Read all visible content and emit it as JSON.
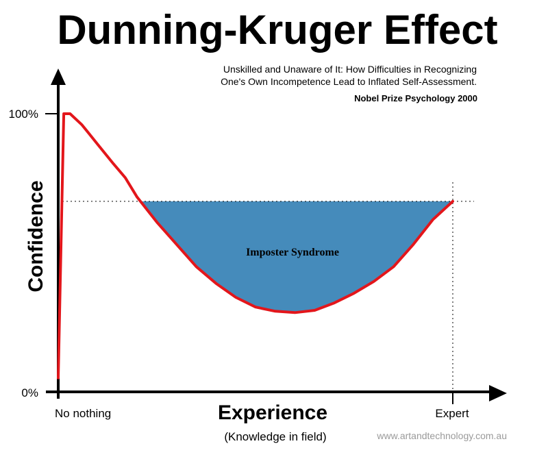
{
  "chart_data": {
    "type": "line",
    "title": "Dunning-Kruger Effect",
    "subtitle_lines": [
      "Unskilled and Unaware of It: How Difficulties in Recognizing",
      "One's Own Incompetence Lead to Inflated Self-Assessment."
    ],
    "note": "Nobel Prize Psychology  2000",
    "xlabel": "Experience",
    "xlabel_sub": "(Knowledge in field)",
    "ylabel": "Confidence",
    "x_tick_labels": [
      "No nothing",
      "Expert"
    ],
    "y_tick_labels": [
      "0%",
      "100%"
    ],
    "xlim": [
      0,
      100
    ],
    "ylim": [
      0,
      100
    ],
    "series": [
      {
        "color": "#e3161b",
        "x": [
          0,
          1.4,
          3,
          6,
          10,
          14,
          17,
          20,
          25,
          30,
          35,
          40,
          45,
          50,
          55,
          60,
          65,
          70,
          75,
          80,
          85,
          90,
          95,
          100
        ],
        "y": [
          5,
          100,
          100,
          96,
          89,
          82,
          77,
          70,
          61,
          53,
          45,
          39,
          34,
          30.5,
          29,
          28.5,
          29.3,
          32,
          35.5,
          39.7,
          45,
          53,
          62,
          68.5
        ]
      }
    ],
    "reference_level": 68.5,
    "expert_x": 100,
    "region": {
      "label": "Imposter Syndrome",
      "color": "#458bbb"
    },
    "grid": false,
    "legend": "none"
  },
  "credit": "www.artandtechnology.com.au"
}
